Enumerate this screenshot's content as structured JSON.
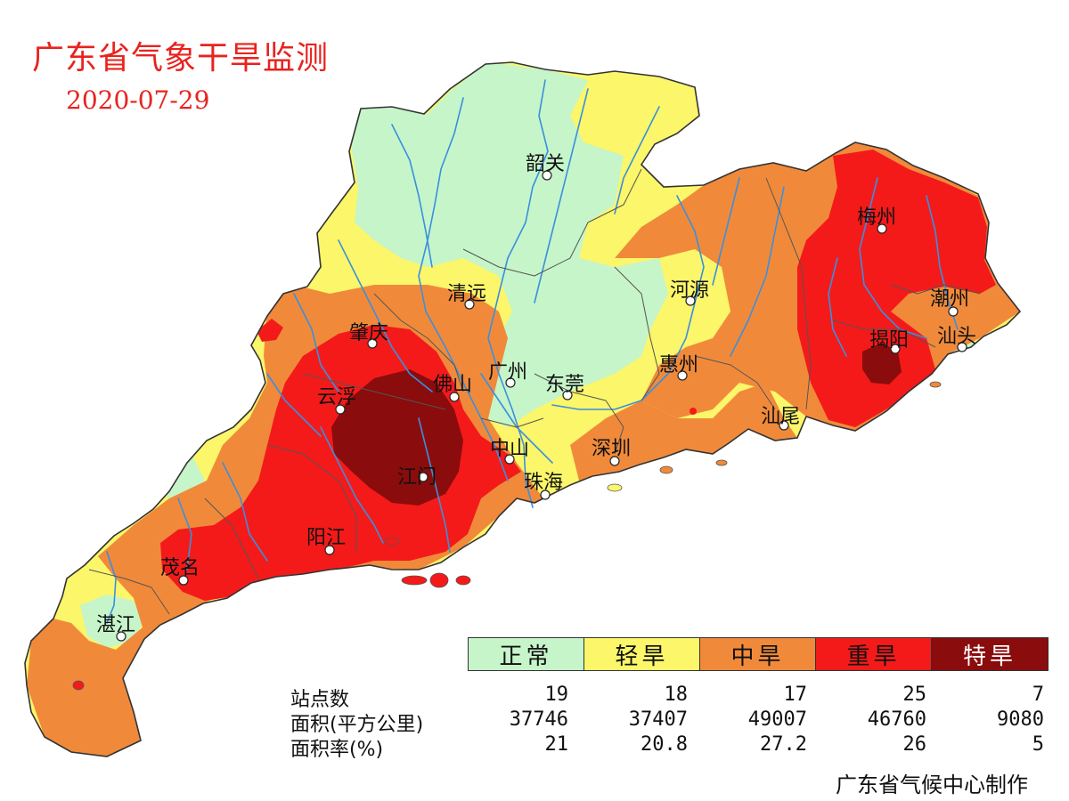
{
  "header": {
    "title": "广东省气象干旱监测",
    "date": "2020-07-29"
  },
  "legend": [
    {
      "label": "正常",
      "color": "#c6f5c9",
      "text_color": "#111111"
    },
    {
      "label": "轻旱",
      "color": "#fbf66a",
      "text_color": "#111111"
    },
    {
      "label": "中旱",
      "color": "#f08a3a",
      "text_color": "#111111"
    },
    {
      "label": "重旱",
      "color": "#f41a1a",
      "text_color": "#111111"
    },
    {
      "label": "特旱",
      "color": "#8b0c0c",
      "text_color": "#ffffff"
    }
  ],
  "stats": {
    "rows": [
      {
        "label": "站点数",
        "values": [
          "19",
          "18",
          "17",
          "25",
          "7"
        ]
      },
      {
        "label": "面积(平方公里)",
        "values": [
          "37746",
          "37407",
          "49007",
          "46760",
          "9080"
        ]
      },
      {
        "label": "面积率(%)",
        "values": [
          "21",
          "20.8",
          "27.2",
          "26",
          "5"
        ]
      }
    ]
  },
  "cities": [
    {
      "name": "韶关"
    },
    {
      "name": "梅州"
    },
    {
      "name": "河源"
    },
    {
      "name": "清远"
    },
    {
      "name": "潮州"
    },
    {
      "name": "揭阳"
    },
    {
      "name": "汕头"
    },
    {
      "name": "肇庆"
    },
    {
      "name": "惠州"
    },
    {
      "name": "广州"
    },
    {
      "name": "佛山"
    },
    {
      "name": "东莞"
    },
    {
      "name": "云浮"
    },
    {
      "name": "汕尾"
    },
    {
      "name": "中山"
    },
    {
      "name": "深圳"
    },
    {
      "name": "江门"
    },
    {
      "name": "珠海"
    },
    {
      "name": "阳江"
    },
    {
      "name": "茂名"
    },
    {
      "name": "湛江"
    }
  ],
  "footer": {
    "credit": "广东省气候中心制作"
  },
  "colors": {
    "title": "#e8231e",
    "river": "#3a8fe0",
    "boundary": "#555555"
  }
}
